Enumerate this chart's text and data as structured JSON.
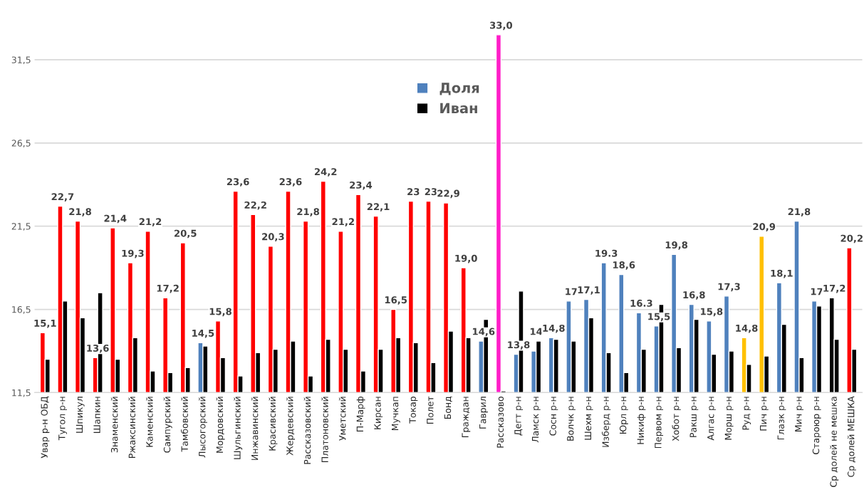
{
  "chart_data": {
    "type": "bar",
    "categories": [
      "Увар р-н ОБД",
      "Тугол р-н",
      "Шпикул",
      "Шапкин",
      "Знаменский",
      "Ржаксинский",
      "Каменский",
      "Сампурский",
      "Тамбовский",
      "Лысогорский",
      "Мордовский",
      "Шульгинский",
      "Инжавинский",
      "Красивский",
      "Жердевский",
      "Рассказовский",
      "Платоновский",
      "Уметский",
      "П-Марф",
      "Кирсан",
      "Мучкап",
      "Токар",
      "Полет",
      "Бонд",
      "Граждан",
      "Гаврил",
      "Рассказово",
      "Дегт р-н",
      "Ламск р-н",
      "Сосн р-н",
      "Волчк р-н",
      "Шехм р-н",
      "Изберд р-н",
      "Юрл р-н",
      "Никиф р-н",
      "Первом р-н",
      "Хобот р-н",
      "Ракш р-н",
      "Алгас р-н",
      "Морш р-н",
      "Руд р-н",
      "Пич р-н",
      "Глазк р-н",
      "Мич р-н",
      "Староюр р-н",
      "Ср долей не мешка",
      "Ср долей МЕШКА"
    ],
    "series": [
      {
        "name": "Доля",
        "color": "#4f81bd",
        "values": [
          15.1,
          22.7,
          21.8,
          13.6,
          21.4,
          19.3,
          21.2,
          17.2,
          20.5,
          14.5,
          15.8,
          23.6,
          22.2,
          20.3,
          23.6,
          21.8,
          24.2,
          21.2,
          23.4,
          22.1,
          16.5,
          23,
          23,
          22.9,
          19.0,
          14.6,
          33.0,
          13.8,
          14,
          14.8,
          17,
          17.1,
          19.3,
          18.6,
          16.3,
          15.5,
          19.8,
          16.8,
          15.8,
          17.3,
          14.8,
          20.9,
          18.1,
          21.8,
          17,
          17.2,
          20.2
        ],
        "colors": [
          "#ff0000",
          "#ff0000",
          "#ff0000",
          "#ff0000",
          "#ff0000",
          "#ff0000",
          "#ff0000",
          "#ff0000",
          "#ff0000",
          "#4f81bd",
          "#ff0000",
          "#ff0000",
          "#ff0000",
          "#ff0000",
          "#ff0000",
          "#ff0000",
          "#ff0000",
          "#ff0000",
          "#ff0000",
          "#ff0000",
          "#ff0000",
          "#ff0000",
          "#ff0000",
          "#ff0000",
          "#ff0000",
          "#4f81bd",
          "#ff1dc8",
          "#4f81bd",
          "#4f81bd",
          "#4f81bd",
          "#4f81bd",
          "#4f81bd",
          "#4f81bd",
          "#4f81bd",
          "#4f81bd",
          "#4f81bd",
          "#4f81bd",
          "#4f81bd",
          "#4f81bd",
          "#4f81bd",
          "#ffc000",
          "#ffc000",
          "#4f81bd",
          "#4f81bd",
          "#4f81bd",
          "#000000",
          "#ff0000"
        ],
        "value_labels": [
          "15,1",
          "22,7",
          "21,8",
          "13,6",
          "21,4",
          "19,3",
          "21,2",
          "17,2",
          "20,5",
          "14,5",
          "15,8",
          "23,6",
          "22,2",
          "20,3",
          "23,6",
          "21,8",
          "24,2",
          "21,2",
          "23,4",
          "22,1",
          "16,5",
          "23",
          "23",
          "22,9",
          "19,0",
          "14,6",
          "33,0",
          "13,8",
          "14",
          "14,8",
          "17",
          "17,1",
          "19.3",
          "18,6",
          "16.3",
          "15,5",
          "19,8",
          "16,8",
          "15,8",
          "17,3",
          "14,8",
          "20,9",
          "18,1",
          "21,8",
          "17",
          "17,2",
          "20,2"
        ]
      },
      {
        "name": "Иван",
        "color": "#000000",
        "values": [
          13.5,
          17.0,
          16.0,
          17.5,
          13.5,
          14.8,
          12.8,
          12.7,
          13.0,
          14.3,
          13.6,
          12.5,
          13.9,
          14.1,
          14.6,
          12.5,
          14.7,
          14.1,
          12.8,
          14.1,
          14.8,
          14.5,
          13.3,
          15.2,
          14.8,
          15.9,
          11.6,
          17.6,
          14.6,
          14.7,
          14.6,
          16.0,
          13.9,
          12.7,
          14.1,
          16.8,
          14.2,
          15.9,
          13.8,
          14.0,
          13.2,
          13.7,
          15.6,
          13.6,
          16.7,
          14.7,
          14.1
        ]
      }
    ],
    "ylim": [
      11.5,
      33.0
    ],
    "yticks": [
      {
        "value": 11.5,
        "label": "11,5"
      },
      {
        "value": 16.5,
        "label": "16,5"
      },
      {
        "value": 21.5,
        "label": "21,5"
      },
      {
        "value": 26.5,
        "label": "26,5"
      },
      {
        "value": 31.5,
        "label": "31,5"
      }
    ],
    "grid": "y",
    "legend": "top"
  }
}
